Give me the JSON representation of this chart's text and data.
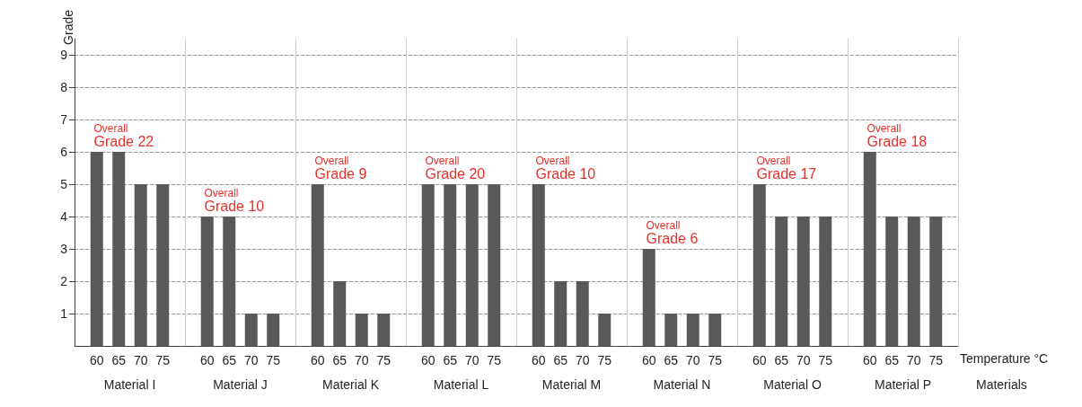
{
  "chart_data": {
    "type": "bar",
    "ylabel": "Grade",
    "xlabel": "Materials",
    "categories": [
      "Material I",
      "Material J",
      "Material K",
      "Material L",
      "Material M",
      "Material N",
      "Material O",
      "Material P"
    ],
    "series": [
      {
        "name": "60",
        "color": "#595959",
        "values": [
          6,
          4,
          5,
          5,
          5,
          3,
          5,
          6
        ]
      },
      {
        "name": "65",
        "color": "#595959",
        "values": [
          6,
          4,
          2,
          5,
          2,
          1,
          4,
          4
        ]
      },
      {
        "name": "70",
        "color": "#595959",
        "values": [
          5,
          1,
          1,
          5,
          2,
          1,
          4,
          4
        ]
      },
      {
        "name": "75",
        "color": "#595959",
        "values": [
          5,
          1,
          1,
          5,
          1,
          1,
          4,
          4
        ]
      }
    ],
    "ylim": [
      0,
      9.5
    ],
    "yticks": [
      1,
      2,
      3,
      4,
      5,
      6,
      7,
      8,
      9
    ],
    "grid": true,
    "legend": false,
    "annotations": [
      "Overall Grade 22",
      "Overall Grade 10",
      "Overall Grade 9",
      "Overall Grade 20",
      "Overall Grade 10",
      "Overall Grade 6",
      "Overall Grade 17",
      "Overall Grade 18",
      "Temperature °C"
    ]
  }
}
